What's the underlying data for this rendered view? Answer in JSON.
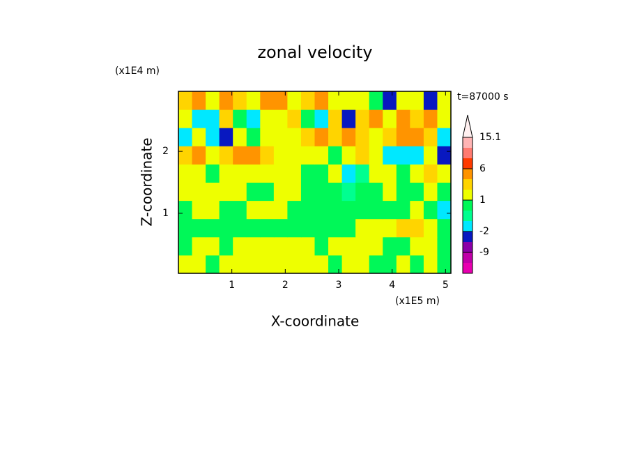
{
  "chart_data": {
    "type": "contour",
    "title": "zonal velocity",
    "x_label": "X-coordinate",
    "y_label": "Z-coordinate",
    "x_unit": "(x1E5 m)",
    "y_unit": "(x1E4 m)",
    "time_label": "t=87000 s",
    "xlim": [
      0,
      5.1
    ],
    "xticks": [
      1,
      2,
      3,
      4,
      5
    ],
    "ylim": [
      0.03,
      2.97
    ],
    "yticks": [
      1,
      2
    ],
    "z": [
      [
        1.5,
        1.5,
        0.5,
        1.5,
        1.5,
        1.5,
        1.5,
        1.5,
        1.5,
        1.5,
        1.5,
        0.5,
        1.5,
        1.5,
        0.5,
        0.5,
        1.5,
        0.5,
        1.5,
        0.5
      ],
      [
        0.5,
        1.5,
        1.5,
        0.5,
        1.5,
        1.5,
        1.5,
        1.5,
        1.5,
        1.5,
        0.5,
        1.5,
        1.5,
        1.5,
        1.5,
        0.5,
        0.5,
        1.5,
        1.5,
        0.5
      ],
      [
        0.5,
        0.5,
        0.5,
        0.5,
        0.5,
        0.5,
        0.5,
        0.5,
        0.5,
        0.5,
        0.5,
        0.5,
        0.5,
        1.5,
        1.5,
        1.5,
        2.5,
        2.5,
        1.5,
        0.5
      ],
      [
        0.5,
        1.5,
        1.5,
        0.5,
        0.5,
        1.5,
        1.5,
        1.5,
        0.5,
        0.5,
        0.5,
        0.5,
        0.5,
        0.5,
        0.5,
        0.5,
        0.5,
        1.5,
        0.5,
        -1.5
      ],
      [
        1.5,
        1.5,
        1.5,
        1.5,
        1.5,
        0.5,
        0.5,
        1.5,
        1.5,
        0.5,
        0.5,
        0.5,
        -0.5,
        0.5,
        0.5,
        1.5,
        0.5,
        0.5,
        1.5,
        0.5
      ],
      [
        1.5,
        1.5,
        0.5,
        1.5,
        1.5,
        1.5,
        1.5,
        1.5,
        1.5,
        0.5,
        0.5,
        1.5,
        -1.5,
        -0.5,
        1.5,
        1.5,
        0.5,
        1.5,
        2.5,
        1.5
      ],
      [
        2.5,
        4,
        1.5,
        2.5,
        4,
        4,
        2.5,
        1.5,
        1.5,
        1.5,
        1.5,
        0.5,
        1.5,
        2.5,
        1.5,
        -1.5,
        -1.5,
        -1.5,
        1.5,
        -4
      ],
      [
        -1.5,
        1.5,
        -1.5,
        -4,
        1.5,
        0.5,
        1.5,
        1.5,
        1.5,
        2.5,
        4,
        2.5,
        4,
        2.5,
        1.5,
        2.5,
        4,
        4,
        2.5,
        -1.5
      ],
      [
        1.5,
        -1.5,
        -1.5,
        2.5,
        0.5,
        -1.5,
        1.5,
        1.5,
        2.5,
        0.5,
        -1.5,
        2.5,
        -4,
        2.5,
        4,
        1.5,
        4,
        2.5,
        4,
        1.5
      ],
      [
        2.5,
        4,
        1.5,
        4,
        2.5,
        1.5,
        4,
        4,
        1.5,
        2.5,
        4,
        1.5,
        1.5,
        1.5,
        0.5,
        -4,
        1.5,
        1.5,
        -4,
        1.5
      ]
    ],
    "levels": [
      -17,
      -13,
      -9,
      -6,
      -2,
      -1,
      0,
      1,
      2,
      3,
      6,
      9,
      12,
      15.1
    ],
    "colors": [
      "#e800b0",
      "#c000a8",
      "#8a00a8",
      "#0818c0",
      "#00e8ff",
      "#00ff90",
      "#00f858",
      "#eeff00",
      "#ffd400",
      "#ff9400",
      "#ff3a00",
      "#ff7a70",
      "#ffb4b4"
    ],
    "over_color": "#fff0f0",
    "colorbar_ticks": [
      15.1,
      6,
      1,
      -2,
      -9
    ]
  }
}
